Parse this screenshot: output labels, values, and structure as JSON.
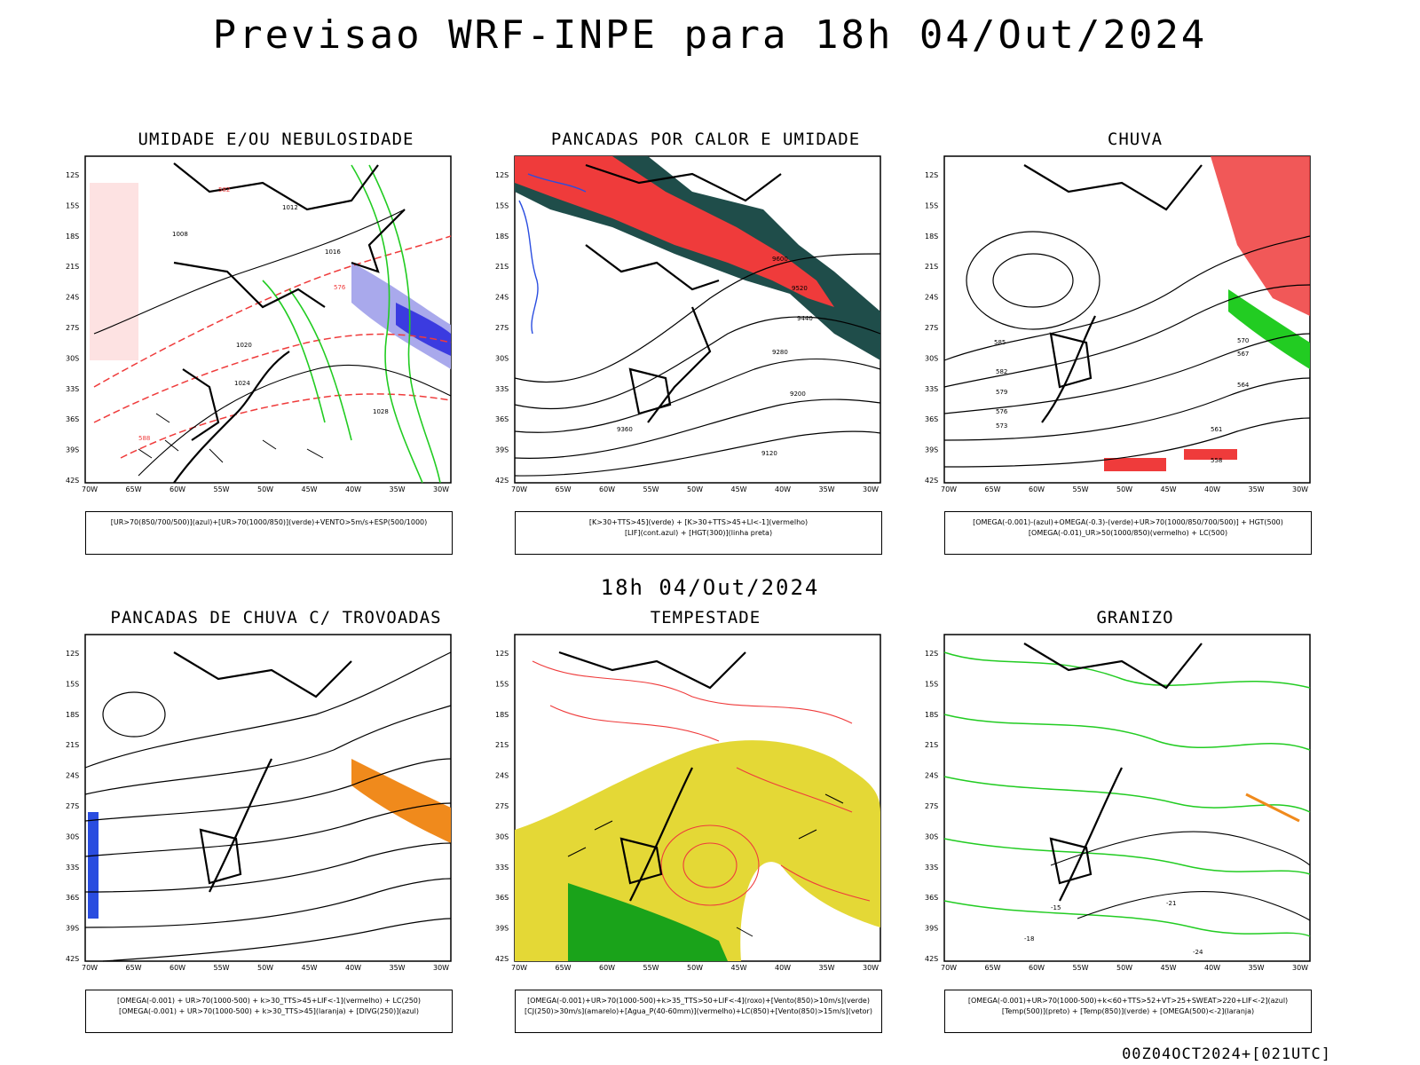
{
  "main_title": "Previsao WRF-INPE  para 18h 04/Out/2024",
  "mid_title": "18h 04/Out/2024",
  "footer": "00Z04OCT2024+[021UTC]",
  "lat_labels": [
    "12S",
    "15S",
    "18S",
    "21S",
    "24S",
    "27S",
    "30S",
    "33S",
    "36S",
    "39S",
    "42S"
  ],
  "lon_labels": [
    "70W",
    "65W",
    "60W",
    "55W",
    "50W",
    "45W",
    "40W",
    "35W",
    "30W"
  ],
  "panels": [
    {
      "title": "UMIDADE E/OU NEBULOSIDADE",
      "legend": [
        "[UR>70(850/700/500)](azul)+[UR>70(1000/850)](verde)+VENTO>5m/s+ESP(500/1000)"
      ]
    },
    {
      "title": "PANCADAS POR CALOR E UMIDADE",
      "legend": [
        "[K>30+TTS>45](verde)  +  [K>30+TTS>45+LI<-1](vermelho)",
        "[LIF](cont.azul)  +  [HGT(300)](linha preta)"
      ]
    },
    {
      "title": "CHUVA",
      "legend": [
        "[OMEGA(-0.001)-(azul)+OMEGA(-0.3)-(verde)+UR>70(1000/850/700/500)]  +  HGT(500)",
        "[OMEGA(-0.01)_UR>50(1000/850)(vermelho)  +  LC(500)"
      ]
    },
    {
      "title": "PANCADAS DE CHUVA C/ TROVOADAS",
      "legend": [
        "[OMEGA(-0.001)  +  UR>70(1000-500)  +  k>30_TTS>45+LIF<-1](vermelho)  +  LC(250)",
        "[OMEGA(-0.001)  +  UR>70(1000-500)  +  k>30_TTS>45](laranja)  +  [DIVG(250)](azul)"
      ]
    },
    {
      "title": "TEMPESTADE",
      "legend": [
        "[OMEGA(-0.001)+UR>70(1000-500)+k>35_TTS>50+LIF<-4](roxo)+[Vento(850)>10m/s](verde)",
        "[CJ(250)>30m/s](amarelo)+[Agua_P(40-60mm)](vermelho)+LC(850)+[Vento(850)>15m/s](vetor)"
      ]
    },
    {
      "title": "GRANIZO",
      "legend": [
        "[OMEGA(-0.001)+UR>70(1000-500)+k<60+TTS>52+VT>25+SWEAT>220+LIF<-2](azul)",
        "[Temp(500)](preto)  +  [Temp(850)](verde)  +  [OMEGA(500)<-2](laranja)"
      ]
    }
  ],
  "contour_labels": {
    "p1": [
      "1012",
      "1008",
      "1016",
      "1020",
      "1024",
      "1028",
      "576",
      "582",
      "588"
    ],
    "p2": [
      "9600",
      "9520",
      "9440",
      "9360",
      "9280",
      "9200",
      "9120"
    ],
    "p3": [
      "585",
      "582",
      "579",
      "576",
      "573",
      "570",
      "567",
      "564",
      "561",
      "558"
    ],
    "p6": [
      "-18",
      "-15",
      "-21",
      "-24"
    ]
  },
  "colors": {
    "red": "#ef3b3b",
    "green": "#22cc22",
    "blue": "#2a4de0",
    "lightblue": "#a9a9ec",
    "teal": "#1f4d4a",
    "orange": "#f08a1c",
    "yellow": "#e4d836",
    "dark_green": "#1aa31a"
  }
}
